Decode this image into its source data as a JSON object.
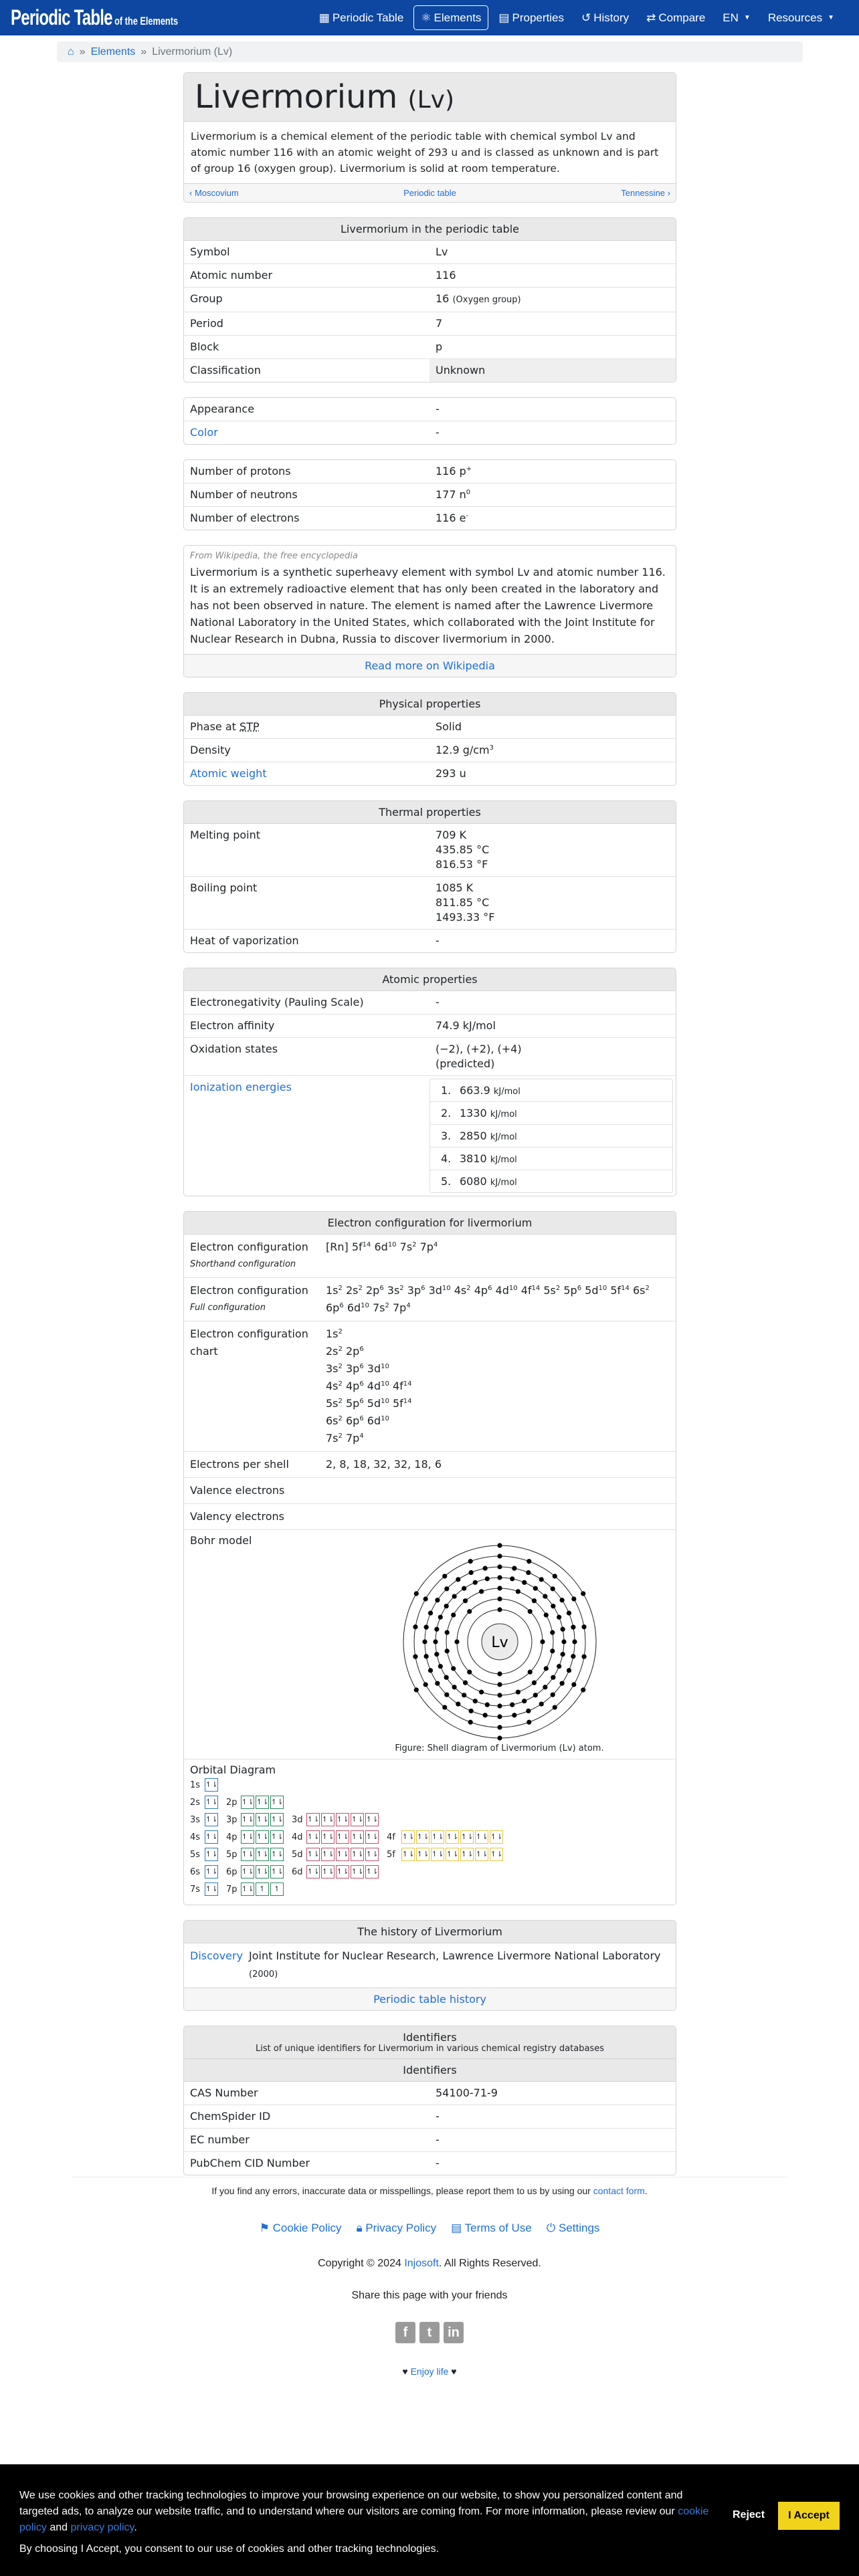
{
  "colors": {
    "navbar": "#0d47a1",
    "link": "#1f6fd0",
    "accept": "#f2d31b",
    "s": "#2b7bb9",
    "p": "#2a8a5e",
    "d": "#c2506a",
    "f": "#e3c63c"
  },
  "nav": {
    "logo_big": "Periodic Table",
    "logo_small": "of the Elements",
    "items": [
      {
        "label": "Periodic Table",
        "icon": "grid-icon",
        "glyph": "▦"
      },
      {
        "label": "Elements",
        "icon": "atom-icon",
        "glyph": "⚛",
        "active": true
      },
      {
        "label": "Properties",
        "icon": "document-icon",
        "glyph": "▤"
      },
      {
        "label": "History",
        "icon": "history-icon",
        "glyph": "↺"
      },
      {
        "label": "Compare",
        "icon": "compare-icon",
        "glyph": "⇄"
      },
      {
        "label": "EN",
        "dropdown": true
      },
      {
        "label": "Resources",
        "dropdown": true
      }
    ]
  },
  "breadcrumb": {
    "home_icon": "home-icon",
    "sep": "»",
    "elements": "Elements",
    "current": "Livermorium (Lv)"
  },
  "title": {
    "name": "Livermorium",
    "symbol": "(Lv)",
    "description": "Livermorium is a chemical element of the periodic table with chemical symbol Lv and atomic number 116 with an atomic weight of 293 u and is classed as unknown and is part of group 16 (oxygen group). Livermorium is solid at room temperature.",
    "prev": "Moscovium",
    "center": "Periodic table",
    "next": "Tennessine"
  },
  "periodic": {
    "header": "Livermorium in the periodic table",
    "rows": [
      {
        "k": "Symbol",
        "v": "Lv"
      },
      {
        "k": "Atomic number",
        "v": "116"
      },
      {
        "k": "Group",
        "v": "16",
        "small": "(Oxygen group)"
      },
      {
        "k": "Period",
        "v": "7"
      },
      {
        "k": "Block",
        "v": "p"
      },
      {
        "k": "Classification",
        "v": "Unknown",
        "grey": true
      }
    ]
  },
  "appearance": {
    "rows": [
      {
        "k": "Appearance",
        "v": "-"
      },
      {
        "k": "Color",
        "v": "-",
        "link": true
      }
    ]
  },
  "particles": {
    "rows": [
      {
        "k": "Number of protons",
        "v": "116 p",
        "sup": "+"
      },
      {
        "k": "Number of neutrons",
        "v": "177 n",
        "sup": "0"
      },
      {
        "k": "Number of electrons",
        "v": "116 e",
        "sup": "-"
      }
    ]
  },
  "wiki": {
    "source": "From Wikipedia, the free encyclopedia",
    "text": "Livermorium is a synthetic superheavy element with symbol Lv and atomic number 116. It is an extremely radioactive element that has only been created in the laboratory and has not been observed in nature. The element is named after the Lawrence Livermore National Laboratory in the United States, which collaborated with the Joint Institute for Nuclear Research in Dubna, Russia to discover livermorium in 2000.",
    "read_more": "Read more on Wikipedia"
  },
  "physical": {
    "header": "Physical properties",
    "rows": [
      {
        "k": "Phase at",
        "abbr": "STP",
        "v": "Solid"
      },
      {
        "k": "Density",
        "v": "12.9 g/cm",
        "sup": "3"
      },
      {
        "k": "Atomic weight",
        "v": "293 u",
        "link": true
      }
    ]
  },
  "thermal": {
    "header": "Thermal properties",
    "rows": [
      {
        "k": "Melting point",
        "lines": [
          "709 K",
          "435.85 °C",
          "816.53 °F"
        ]
      },
      {
        "k": "Boiling point",
        "lines": [
          "1085 K",
          "811.85 °C",
          "1493.33 °F"
        ]
      },
      {
        "k": "Heat of vaporization",
        "v": "-"
      }
    ]
  },
  "atomic": {
    "header": "Atomic properties",
    "rows": [
      {
        "k": "Electronegativity (Pauling Scale)",
        "v": "-"
      },
      {
        "k": "Electron affinity",
        "v": "74.9 kJ/mol"
      },
      {
        "k": "Oxidation states",
        "lines": [
          "(−2), (+2), (+4)",
          "(predicted)"
        ]
      }
    ],
    "ionization_label": "Ionization energies",
    "ionization": [
      {
        "n": "1.",
        "v": "663.9",
        "u": "kJ/mol"
      },
      {
        "n": "2.",
        "v": "1330",
        "u": "kJ/mol"
      },
      {
        "n": "3.",
        "v": "2850",
        "u": "kJ/mol"
      },
      {
        "n": "4.",
        "v": "3810",
        "u": "kJ/mol"
      },
      {
        "n": "5.",
        "v": "6080",
        "u": "kJ/mol"
      }
    ]
  },
  "econf": {
    "header": "Electron configuration for livermorium",
    "short_label": "Electron configuration",
    "short_sub": "Shorthand configuration",
    "short": [
      [
        "[Rn] ",
        ""
      ],
      [
        "5f",
        "14"
      ],
      [
        "6d",
        "10"
      ],
      [
        "7s",
        "2"
      ],
      [
        "7p",
        "4"
      ]
    ],
    "full_label": "Electron configuration",
    "full_sub": "Full configuration",
    "full": [
      [
        "1s",
        "2"
      ],
      [
        "2s",
        "2"
      ],
      [
        "2p",
        "6"
      ],
      [
        "3s",
        "2"
      ],
      [
        "3p",
        "6"
      ],
      [
        "3d",
        "10"
      ],
      [
        "4s",
        "2"
      ],
      [
        "4p",
        "6"
      ],
      [
        "4d",
        "10"
      ],
      [
        "4f",
        "14"
      ],
      [
        "5s",
        "2"
      ],
      [
        "5p",
        "6"
      ],
      [
        "5d",
        "10"
      ],
      [
        "5f",
        "14"
      ],
      [
        "6s",
        "2"
      ],
      [
        "6p",
        "6"
      ],
      [
        "6d",
        "10"
      ],
      [
        "7s",
        "2"
      ],
      [
        "7p",
        "4"
      ]
    ],
    "chart_label": "Electron configuration chart",
    "chart": [
      [
        [
          "1s",
          "2"
        ]
      ],
      [
        [
          "2s",
          "2"
        ],
        [
          "2p",
          "6"
        ]
      ],
      [
        [
          "3s",
          "2"
        ],
        [
          "3p",
          "6"
        ],
        [
          "3d",
          "10"
        ]
      ],
      [
        [
          "4s",
          "2"
        ],
        [
          "4p",
          "6"
        ],
        [
          "4d",
          "10"
        ],
        [
          "4f",
          "14"
        ]
      ],
      [
        [
          "5s",
          "2"
        ],
        [
          "5p",
          "6"
        ],
        [
          "5d",
          "10"
        ],
        [
          "5f",
          "14"
        ]
      ],
      [
        [
          "6s",
          "2"
        ],
        [
          "6p",
          "6"
        ],
        [
          "6d",
          "10"
        ]
      ],
      [
        [
          "7s",
          "2"
        ],
        [
          "7p",
          "4"
        ]
      ]
    ],
    "per_shell_label": "Electrons per shell",
    "per_shell": "2, 8, 18, 32, 32, 18, 6",
    "shells": [
      2,
      8,
      18,
      32,
      32,
      18,
      6
    ],
    "valence_label": "Valence electrons",
    "valency_label": "Valency electrons",
    "bohr_label": "Bohr model",
    "bohr_symbol": "Lv",
    "bohr_caption": "Figure: Shell diagram of Livermorium (Lv) atom.",
    "orbital_label": "Orbital Diagram",
    "orbitals": [
      [
        {
          "l": "1s",
          "t": "s",
          "b": [
            "↿⇂"
          ]
        }
      ],
      [
        {
          "l": "2s",
          "t": "s",
          "b": [
            "↿⇂"
          ]
        },
        {
          "l": "2p",
          "t": "p",
          "b": [
            "↿⇂",
            "↿⇂",
            "↿⇂"
          ]
        }
      ],
      [
        {
          "l": "3s",
          "t": "s",
          "b": [
            "↿⇂"
          ]
        },
        {
          "l": "3p",
          "t": "p",
          "b": [
            "↿⇂",
            "↿⇂",
            "↿⇂"
          ]
        },
        {
          "l": "3d",
          "t": "d",
          "b": [
            "↿⇂",
            "↿⇂",
            "↿⇂",
            "↿⇂",
            "↿⇂"
          ]
        }
      ],
      [
        {
          "l": "4s",
          "t": "s",
          "b": [
            "↿⇂"
          ]
        },
        {
          "l": "4p",
          "t": "p",
          "b": [
            "↿⇂",
            "↿⇂",
            "↿⇂"
          ]
        },
        {
          "l": "4d",
          "t": "d",
          "b": [
            "↿⇂",
            "↿⇂",
            "↿⇂",
            "↿⇂",
            "↿⇂"
          ]
        },
        {
          "l": "4f",
          "t": "f",
          "b": [
            "↿⇂",
            "↿⇂",
            "↿⇂",
            "↿⇂",
            "↿⇂",
            "↿⇂",
            "↿⇂"
          ]
        }
      ],
      [
        {
          "l": "5s",
          "t": "s",
          "b": [
            "↿⇂"
          ]
        },
        {
          "l": "5p",
          "t": "p",
          "b": [
            "↿⇂",
            "↿⇂",
            "↿⇂"
          ]
        },
        {
          "l": "5d",
          "t": "d",
          "b": [
            "↿⇂",
            "↿⇂",
            "↿⇂",
            "↿⇂",
            "↿⇂"
          ]
        },
        {
          "l": "5f",
          "t": "f",
          "b": [
            "↿⇂",
            "↿⇂",
            "↿⇂",
            "↿⇂",
            "↿⇂",
            "↿⇂",
            "↿⇂"
          ]
        }
      ],
      [
        {
          "l": "6s",
          "t": "s",
          "b": [
            "↿⇂"
          ]
        },
        {
          "l": "6p",
          "t": "p",
          "b": [
            "↿⇂",
            "↿⇂",
            "↿⇂"
          ]
        },
        {
          "l": "6d",
          "t": "d",
          "b": [
            "↿⇂",
            "↿⇂",
            "↿⇂",
            "↿⇂",
            "↿⇂"
          ]
        }
      ],
      [
        {
          "l": "7s",
          "t": "s",
          "b": [
            "↿⇂"
          ]
        },
        {
          "l": "7p",
          "t": "p",
          "b": [
            "↿⇂",
            "↿",
            "↿"
          ]
        }
      ]
    ]
  },
  "history": {
    "header": "The history of Livermorium",
    "k": "Discovery",
    "v": "Joint Institute for Nuclear Research, Lawrence Livermore National Laboratory",
    "year": "(2000)",
    "footer": "Periodic table history"
  },
  "identifiers": {
    "header": "Identifiers",
    "subheader": "List of unique identifiers for Livermorium in various chemical registry databases",
    "rows": [
      {
        "k": "CAS Number",
        "v": "54100-71-9"
      },
      {
        "k": "ChemSpider ID",
        "v": "-"
      },
      {
        "k": "EC number",
        "v": "-"
      },
      {
        "k": "PubChem CID Number",
        "v": "-"
      }
    ]
  },
  "footer": {
    "errors": "If you find any errors, inaccurate data or misspellings, please report them to us by using our",
    "contact": "contact form",
    "links": [
      {
        "label": "Cookie Policy",
        "icon": "flag-icon",
        "glyph": "⚑"
      },
      {
        "label": "Privacy Policy",
        "icon": "lock-icon",
        "glyph": "🔒︎"
      },
      {
        "label": "Terms of Use",
        "icon": "document-icon",
        "glyph": "▤"
      },
      {
        "label": "Settings",
        "icon": "power-icon",
        "glyph": "⏻"
      }
    ],
    "copyright": "Copyright © 2024",
    "company": "Injosoft",
    "rights": ". All Rights Reserved.",
    "share": "Share this page with your friends",
    "social": [
      {
        "icon": "facebook-icon",
        "glyph": "f"
      },
      {
        "icon": "twitter-icon",
        "glyph": "t"
      },
      {
        "icon": "linkedin-icon",
        "glyph": "in"
      }
    ],
    "heart": "♥",
    "enjoy": "Enjoy life"
  },
  "cookie": {
    "text1": "We use cookies and other tracking technologies to improve your browsing experience on our website, to show you personalized content and targeted ads, to analyze our website traffic, and to understand where our visitors are coming from. For more information, please review our",
    "cookie_link": "cookie policy",
    "and": "and",
    "privacy_link": "privacy policy",
    "text2": "By choosing I Accept, you consent to our use of cookies and other tracking technologies.",
    "reject": "Reject",
    "accept": "I Accept"
  }
}
